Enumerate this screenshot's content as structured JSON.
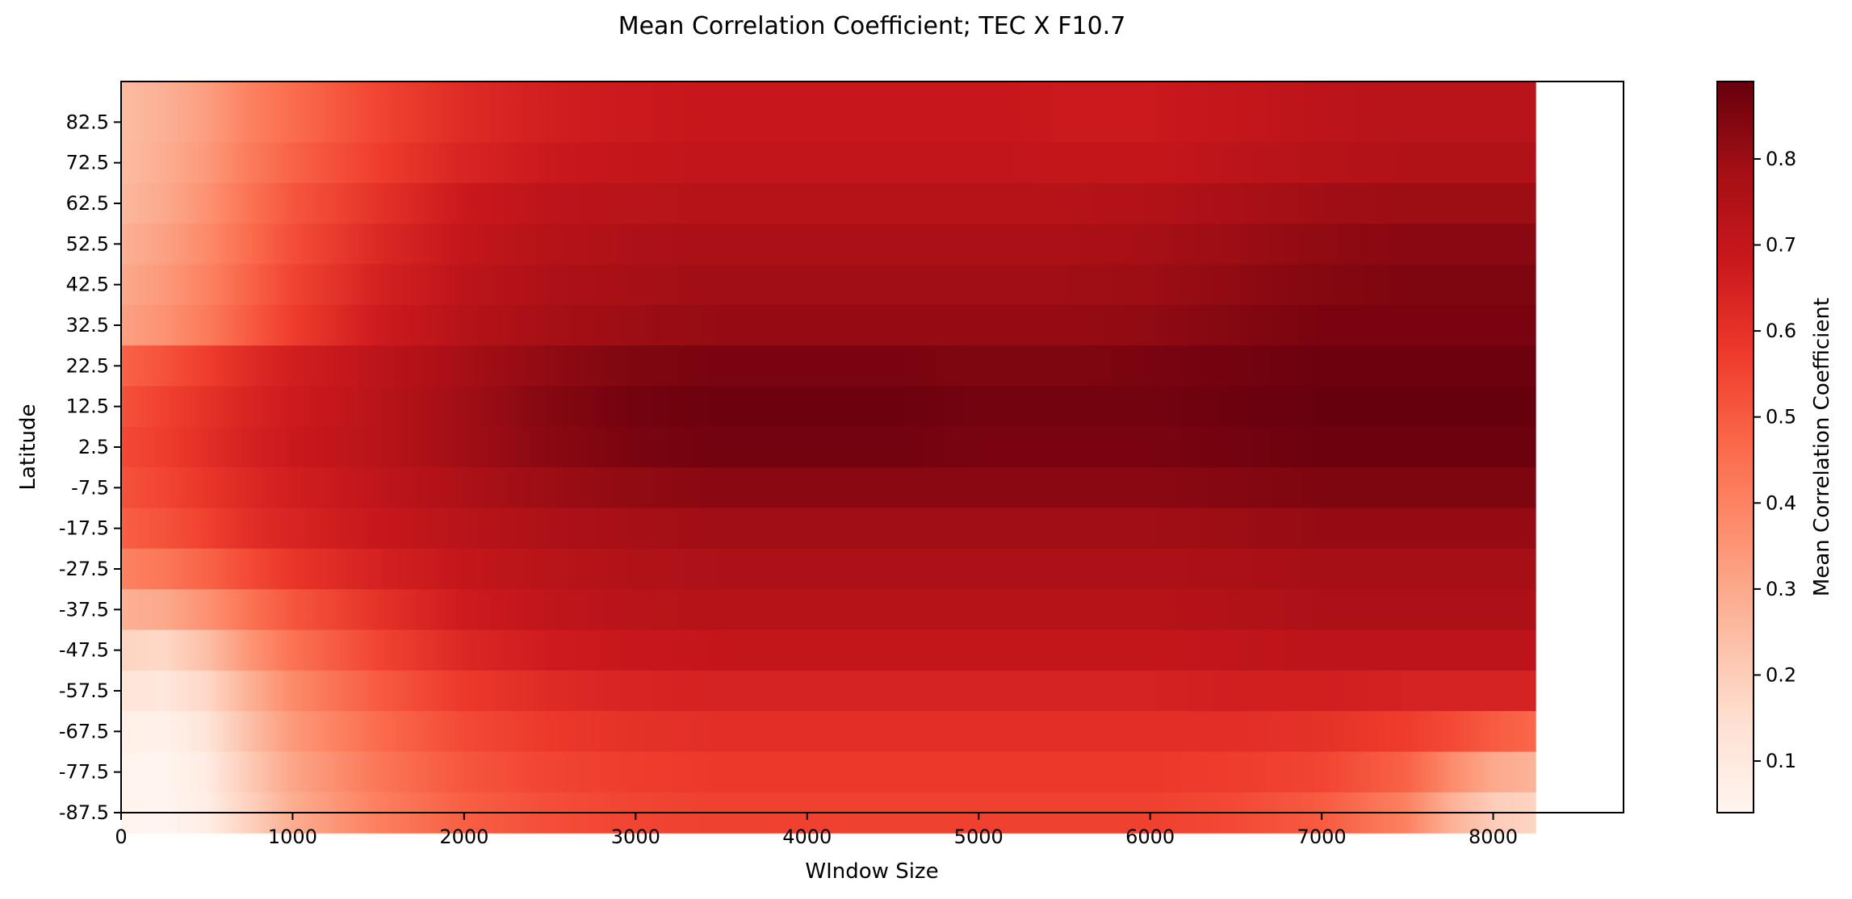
{
  "chart_data": {
    "type": "heatmap",
    "title": "Mean Correlation Coefficient; TEC X F10.7",
    "xlabel": "WIndow Size",
    "ylabel": "Latitude",
    "colorbar_label": "Mean Correlation Coefficient",
    "colormap": "Reds",
    "colormap_stops": [
      "#fff5f0",
      "#fee0d2",
      "#fcbba1",
      "#fc9272",
      "#fb6a4a",
      "#ef3b2c",
      "#cb181d",
      "#a50f15",
      "#67000d"
    ],
    "xlim": [
      0,
      8760
    ],
    "data_x_extent": [
      0,
      8250
    ],
    "x_ticks": [
      0,
      1000,
      2000,
      3000,
      4000,
      5000,
      6000,
      7000,
      8000
    ],
    "y_ticks": [
      82.5,
      72.5,
      62.5,
      52.5,
      42.5,
      32.5,
      22.5,
      12.5,
      2.5,
      -7.5,
      -17.5,
      -27.5,
      -37.5,
      -47.5,
      -57.5,
      -67.5,
      -77.5,
      -87.5
    ],
    "y_tick_labels": [
      "82.5",
      "72.5",
      "62.5",
      "52.5",
      "42.5",
      "32.5",
      "22.5",
      "12.5",
      "2.5",
      "-7.5",
      "-17.5",
      "-27.5",
      "-37.5",
      "-47.5",
      "-57.5",
      "-67.5",
      "-77.5",
      "-87.5"
    ],
    "ylim": [
      -87.5,
      92.5
    ],
    "color_range": [
      0.04,
      0.89
    ],
    "colorbar_ticks": [
      0.1,
      0.2,
      0.3,
      0.4,
      0.5,
      0.6,
      0.7,
      0.8
    ],
    "x_samples": [
      0,
      250,
      500,
      750,
      1000,
      1500,
      2000,
      2500,
      3000,
      3500,
      4000,
      4500,
      5000,
      5500,
      6000,
      6500,
      7000,
      7500,
      7750,
      8000,
      8250
    ],
    "latitude_rows": [
      {
        "lat": 82.5,
        "values": [
          0.25,
          0.28,
          0.33,
          0.4,
          0.46,
          0.55,
          0.62,
          0.66,
          0.68,
          0.69,
          0.69,
          0.69,
          0.69,
          0.68,
          0.68,
          0.7,
          0.72,
          0.73,
          0.73,
          0.73,
          0.73
        ]
      },
      {
        "lat": 72.5,
        "values": [
          0.25,
          0.29,
          0.34,
          0.42,
          0.48,
          0.57,
          0.64,
          0.68,
          0.7,
          0.71,
          0.71,
          0.71,
          0.71,
          0.7,
          0.7,
          0.72,
          0.74,
          0.75,
          0.75,
          0.75,
          0.75
        ]
      },
      {
        "lat": 62.5,
        "values": [
          0.26,
          0.3,
          0.36,
          0.44,
          0.51,
          0.6,
          0.68,
          0.72,
          0.73,
          0.74,
          0.74,
          0.74,
          0.74,
          0.74,
          0.75,
          0.77,
          0.79,
          0.8,
          0.8,
          0.8,
          0.8
        ]
      },
      {
        "lat": 52.5,
        "values": [
          0.28,
          0.32,
          0.38,
          0.46,
          0.53,
          0.63,
          0.7,
          0.74,
          0.76,
          0.77,
          0.77,
          0.77,
          0.77,
          0.77,
          0.78,
          0.8,
          0.82,
          0.83,
          0.83,
          0.83,
          0.83
        ]
      },
      {
        "lat": 42.5,
        "values": [
          0.3,
          0.34,
          0.4,
          0.48,
          0.55,
          0.65,
          0.72,
          0.76,
          0.78,
          0.79,
          0.79,
          0.79,
          0.79,
          0.79,
          0.8,
          0.82,
          0.84,
          0.85,
          0.85,
          0.85,
          0.85
        ]
      },
      {
        "lat": 32.5,
        "values": [
          0.32,
          0.36,
          0.42,
          0.5,
          0.57,
          0.67,
          0.74,
          0.78,
          0.8,
          0.81,
          0.81,
          0.81,
          0.81,
          0.81,
          0.82,
          0.84,
          0.86,
          0.86,
          0.86,
          0.86,
          0.86
        ]
      },
      {
        "lat": 22.5,
        "values": [
          0.48,
          0.52,
          0.57,
          0.62,
          0.66,
          0.72,
          0.78,
          0.82,
          0.85,
          0.86,
          0.86,
          0.86,
          0.85,
          0.85,
          0.86,
          0.87,
          0.88,
          0.88,
          0.88,
          0.88,
          0.88
        ]
      },
      {
        "lat": 12.5,
        "values": [
          0.52,
          0.56,
          0.6,
          0.64,
          0.67,
          0.73,
          0.79,
          0.84,
          0.87,
          0.88,
          0.88,
          0.88,
          0.87,
          0.87,
          0.87,
          0.88,
          0.89,
          0.89,
          0.89,
          0.89,
          0.89
        ]
      },
      {
        "lat": 2.5,
        "values": [
          0.54,
          0.57,
          0.61,
          0.65,
          0.68,
          0.73,
          0.79,
          0.83,
          0.86,
          0.87,
          0.87,
          0.87,
          0.86,
          0.86,
          0.86,
          0.87,
          0.88,
          0.88,
          0.88,
          0.88,
          0.88
        ]
      },
      {
        "lat": -7.5,
        "values": [
          0.52,
          0.55,
          0.59,
          0.63,
          0.66,
          0.71,
          0.76,
          0.8,
          0.82,
          0.83,
          0.83,
          0.83,
          0.83,
          0.83,
          0.83,
          0.84,
          0.85,
          0.85,
          0.85,
          0.85,
          0.85
        ]
      },
      {
        "lat": -17.5,
        "values": [
          0.49,
          0.52,
          0.56,
          0.61,
          0.64,
          0.69,
          0.73,
          0.76,
          0.78,
          0.79,
          0.79,
          0.79,
          0.79,
          0.79,
          0.79,
          0.8,
          0.81,
          0.81,
          0.81,
          0.81,
          0.81
        ]
      },
      {
        "lat": -27.5,
        "values": [
          0.4,
          0.43,
          0.48,
          0.54,
          0.59,
          0.65,
          0.7,
          0.73,
          0.75,
          0.76,
          0.76,
          0.76,
          0.76,
          0.76,
          0.76,
          0.77,
          0.78,
          0.78,
          0.78,
          0.78,
          0.78
        ]
      },
      {
        "lat": -37.5,
        "values": [
          0.28,
          0.3,
          0.36,
          0.44,
          0.51,
          0.6,
          0.67,
          0.71,
          0.73,
          0.74,
          0.74,
          0.74,
          0.74,
          0.74,
          0.74,
          0.75,
          0.76,
          0.76,
          0.76,
          0.76,
          0.76
        ]
      },
      {
        "lat": -47.5,
        "values": [
          0.18,
          0.17,
          0.24,
          0.35,
          0.44,
          0.55,
          0.63,
          0.67,
          0.69,
          0.7,
          0.7,
          0.7,
          0.7,
          0.7,
          0.7,
          0.71,
          0.72,
          0.72,
          0.72,
          0.72,
          0.72
        ]
      },
      {
        "lat": -57.5,
        "values": [
          0.12,
          0.11,
          0.17,
          0.28,
          0.38,
          0.5,
          0.58,
          0.62,
          0.64,
          0.65,
          0.65,
          0.65,
          0.65,
          0.65,
          0.65,
          0.66,
          0.66,
          0.65,
          0.65,
          0.65,
          0.65
        ]
      },
      {
        "lat": -67.5,
        "values": [
          0.07,
          0.06,
          0.12,
          0.24,
          0.34,
          0.46,
          0.54,
          0.58,
          0.6,
          0.61,
          0.61,
          0.61,
          0.61,
          0.61,
          0.61,
          0.61,
          0.6,
          0.57,
          0.54,
          0.5,
          0.47
        ]
      },
      {
        "lat": -77.5,
        "values": [
          0.05,
          0.04,
          0.09,
          0.21,
          0.31,
          0.43,
          0.51,
          0.55,
          0.57,
          0.58,
          0.58,
          0.58,
          0.58,
          0.58,
          0.58,
          0.57,
          0.55,
          0.48,
          0.38,
          0.3,
          0.27
        ]
      },
      {
        "lat": -87.5,
        "values": [
          0.05,
          0.04,
          0.08,
          0.19,
          0.29,
          0.41,
          0.49,
          0.53,
          0.55,
          0.56,
          0.56,
          0.56,
          0.56,
          0.56,
          0.56,
          0.54,
          0.5,
          0.4,
          0.28,
          0.2,
          0.18
        ]
      }
    ]
  }
}
